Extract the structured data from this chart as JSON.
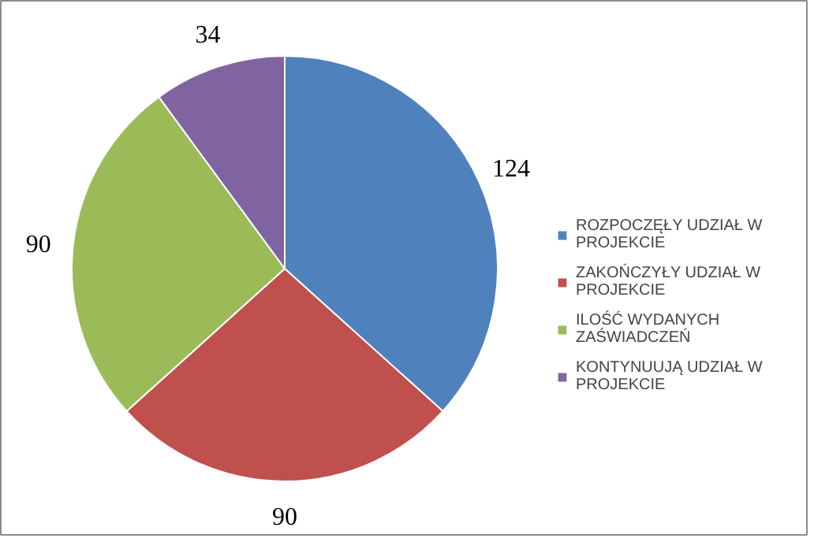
{
  "chart_data": {
    "type": "pie",
    "categories": [
      "ROZPOCZĘŁY UDZIAŁ W PROJEKCIE",
      "ZAKOŃCZYŁY UDZIAŁ W PROJEKCIE",
      "ILOŚĆ WYDANYCH ZAŚWIADCZEŃ",
      "KONTYNUUJĄ UDZIAŁ W PROJEKCIE"
    ],
    "values": [
      124,
      90,
      90,
      34
    ],
    "colors": [
      "#4f81bd",
      "#c0504d",
      "#9bbb59",
      "#8064a2"
    ],
    "data_labels": true,
    "legend": "right"
  }
}
